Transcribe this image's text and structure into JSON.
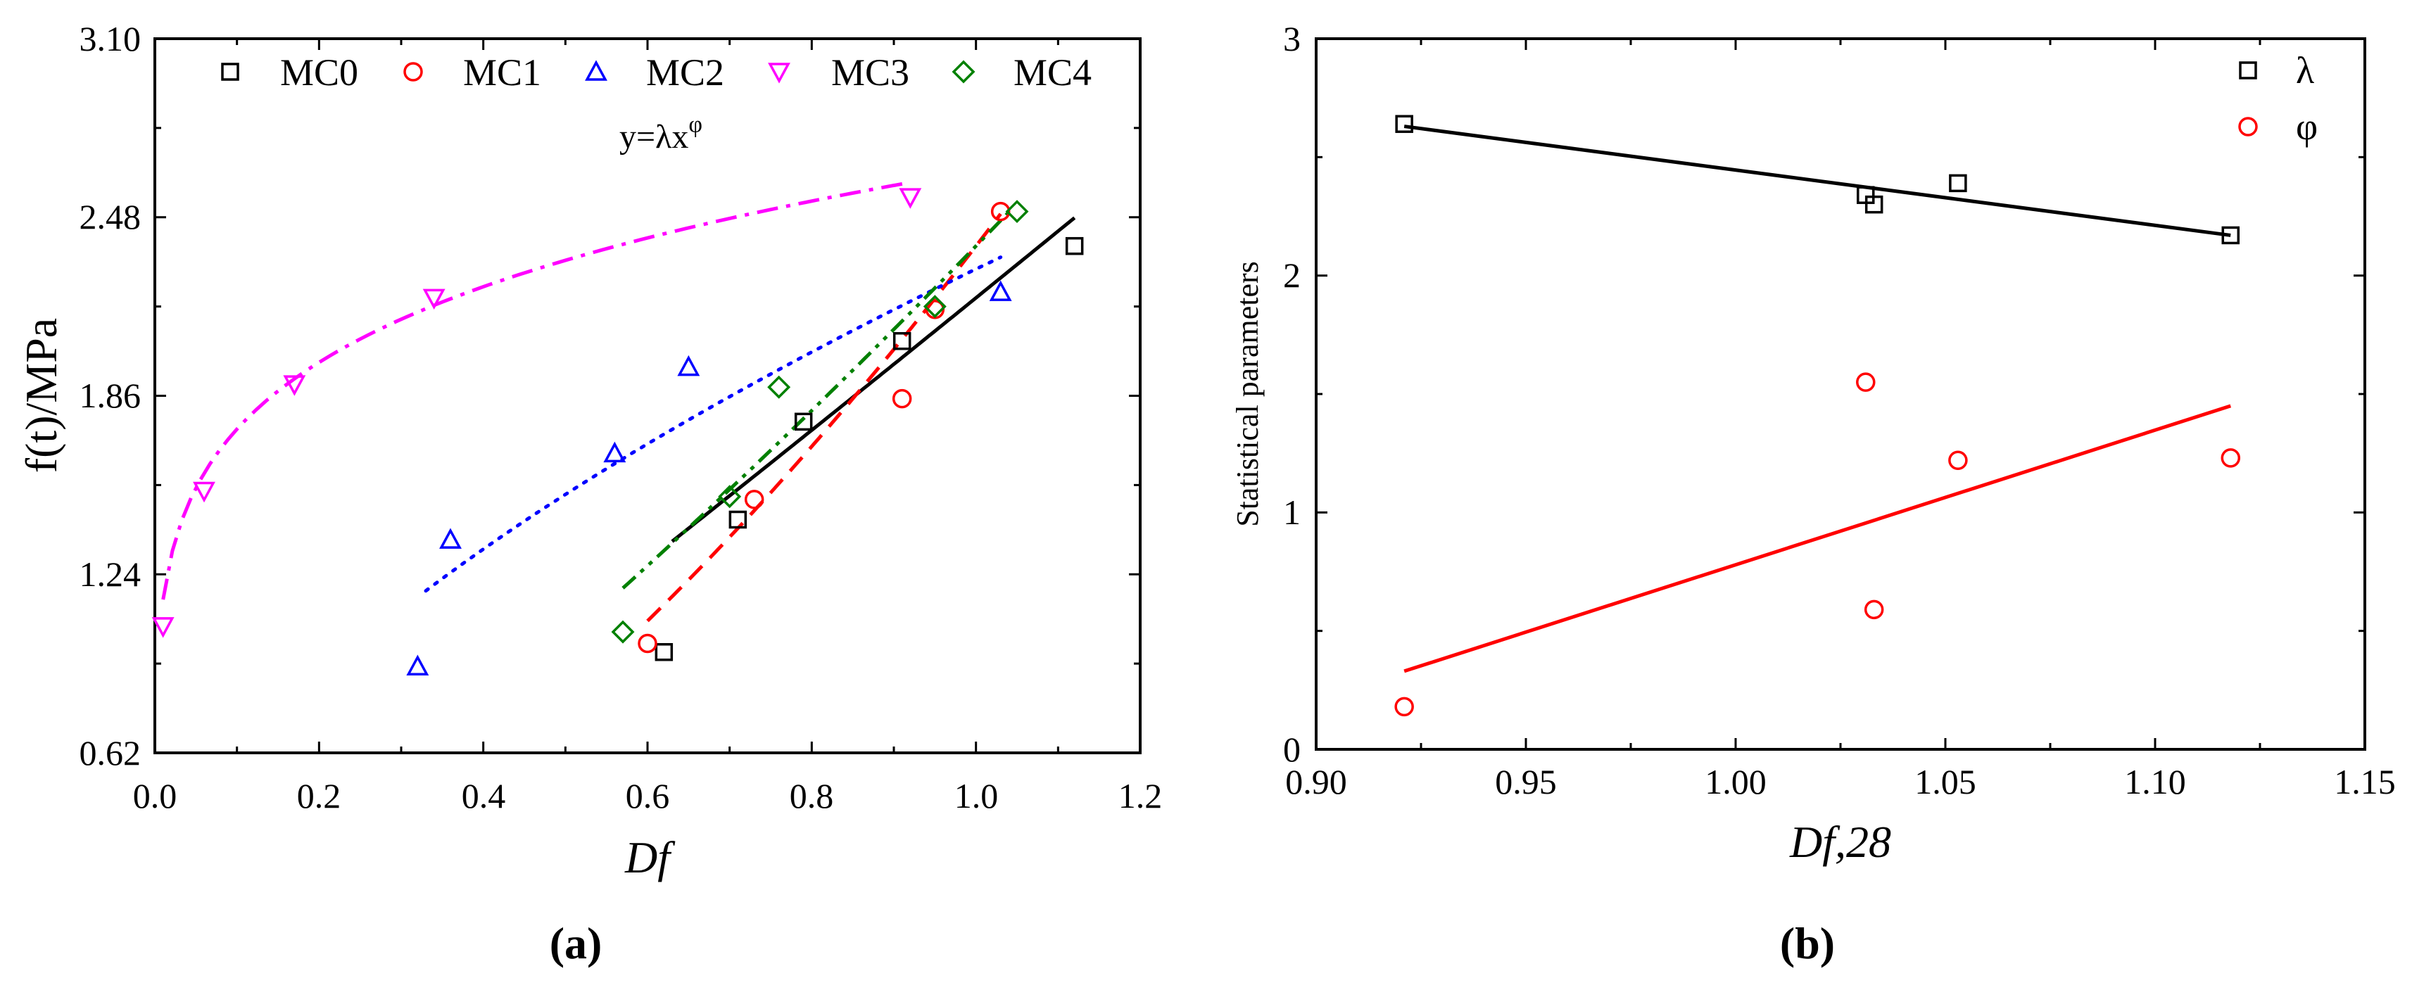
{
  "figure": {
    "panel_a_label": "(a)",
    "panel_b_label": "(b)"
  },
  "chart_data": [
    {
      "type": "scatter",
      "panel": "a",
      "title": "",
      "xlabel": "Df",
      "ylabel": "f(t)/MPa",
      "xlim": [
        0.0,
        1.2
      ],
      "ylim": [
        0.62,
        3.1
      ],
      "xticks": [
        "0.0",
        "0.2",
        "0.4",
        "0.6",
        "0.8",
        "1.0",
        "1.2"
      ],
      "yticks": [
        "0.62",
        "1.24",
        "1.86",
        "2.48",
        "3.10"
      ],
      "annotation": "y=λx",
      "annotation_exp": "φ",
      "legend_position": "top",
      "series": [
        {
          "name": "MC0",
          "marker": "square",
          "color": "#000000",
          "line": "solid",
          "points": [
            [
              0.62,
              0.97
            ],
            [
              0.71,
              1.43
            ],
            [
              0.79,
              1.77
            ],
            [
              0.91,
              2.05
            ],
            [
              1.12,
              2.38
            ]
          ],
          "fit": {
            "lambda": 2.2,
            "phi": 1.05,
            "x_range": [
              0.63,
              1.12
            ]
          }
        },
        {
          "name": "MC1",
          "marker": "circle",
          "color": "#ff0000",
          "line": "dashed",
          "points": [
            [
              0.6,
              1.0
            ],
            [
              0.73,
              1.5
            ],
            [
              0.91,
              1.85
            ],
            [
              0.95,
              2.16
            ],
            [
              1.03,
              2.5
            ]
          ],
          "fit": {
            "lambda": 2.38,
            "phi": 1.55,
            "x_range": [
              0.6,
              1.03
            ]
          }
        },
        {
          "name": "MC2",
          "marker": "triangle-up",
          "color": "#0000ff",
          "line": "dotted",
          "points": [
            [
              0.32,
              0.92
            ],
            [
              0.36,
              1.36
            ],
            [
              0.56,
              1.66
            ],
            [
              0.65,
              1.96
            ],
            [
              1.03,
              2.22
            ]
          ],
          "fit": {
            "lambda": 2.3,
            "phi": 0.6,
            "x_range": [
              0.33,
              1.03
            ]
          }
        },
        {
          "name": "MC3",
          "marker": "triangle-down",
          "color": "#ff00ff",
          "line": "dashdot",
          "points": [
            [
              0.01,
              1.06
            ],
            [
              0.06,
              1.53
            ],
            [
              0.17,
              1.9
            ],
            [
              0.34,
              2.2
            ],
            [
              0.92,
              2.55
            ]
          ],
          "fit": {
            "lambda": 2.64,
            "phi": 0.18,
            "x_range": [
              0.01,
              0.92
            ]
          }
        },
        {
          "name": "MC4",
          "marker": "diamond",
          "color": "#008000",
          "line": "dashdotdot",
          "points": [
            [
              0.57,
              1.04
            ],
            [
              0.7,
              1.51
            ],
            [
              0.76,
              1.89
            ],
            [
              0.95,
              2.17
            ],
            [
              1.05,
              2.5
            ]
          ],
          "fit": {
            "lambda": 2.38,
            "phi": 1.23,
            "x_range": [
              0.57,
              1.04
            ]
          }
        }
      ]
    },
    {
      "type": "scatter",
      "panel": "b",
      "title": "",
      "xlabel": "Df,28",
      "ylabel": "Statistical parameters",
      "xlim": [
        0.9,
        1.15
      ],
      "ylim": [
        0,
        3
      ],
      "xticks": [
        "0.90",
        "0.95",
        "1.00",
        "1.05",
        "1.10",
        "1.15"
      ],
      "yticks": [
        "0",
        "1",
        "2",
        "3"
      ],
      "legend_position": "top-right",
      "series": [
        {
          "name": "λ",
          "marker": "square",
          "color": "#000000",
          "points": [
            [
              0.921,
              2.64
            ],
            [
              1.031,
              2.34
            ],
            [
              1.033,
              2.3
            ],
            [
              1.053,
              2.39
            ],
            [
              1.118,
              2.17
            ]
          ],
          "fit": {
            "type": "linear",
            "x": [
              0.921,
              1.118
            ],
            "y": [
              2.63,
              2.17
            ]
          }
        },
        {
          "name": "φ",
          "marker": "circle",
          "color": "#ff0000",
          "points": [
            [
              0.921,
              0.18
            ],
            [
              1.031,
              1.55
            ],
            [
              1.033,
              0.59
            ],
            [
              1.053,
              1.22
            ],
            [
              1.118,
              1.23
            ]
          ],
          "fit": {
            "type": "linear",
            "x": [
              0.921,
              1.118
            ],
            "y": [
              0.33,
              1.45
            ]
          }
        }
      ]
    }
  ]
}
